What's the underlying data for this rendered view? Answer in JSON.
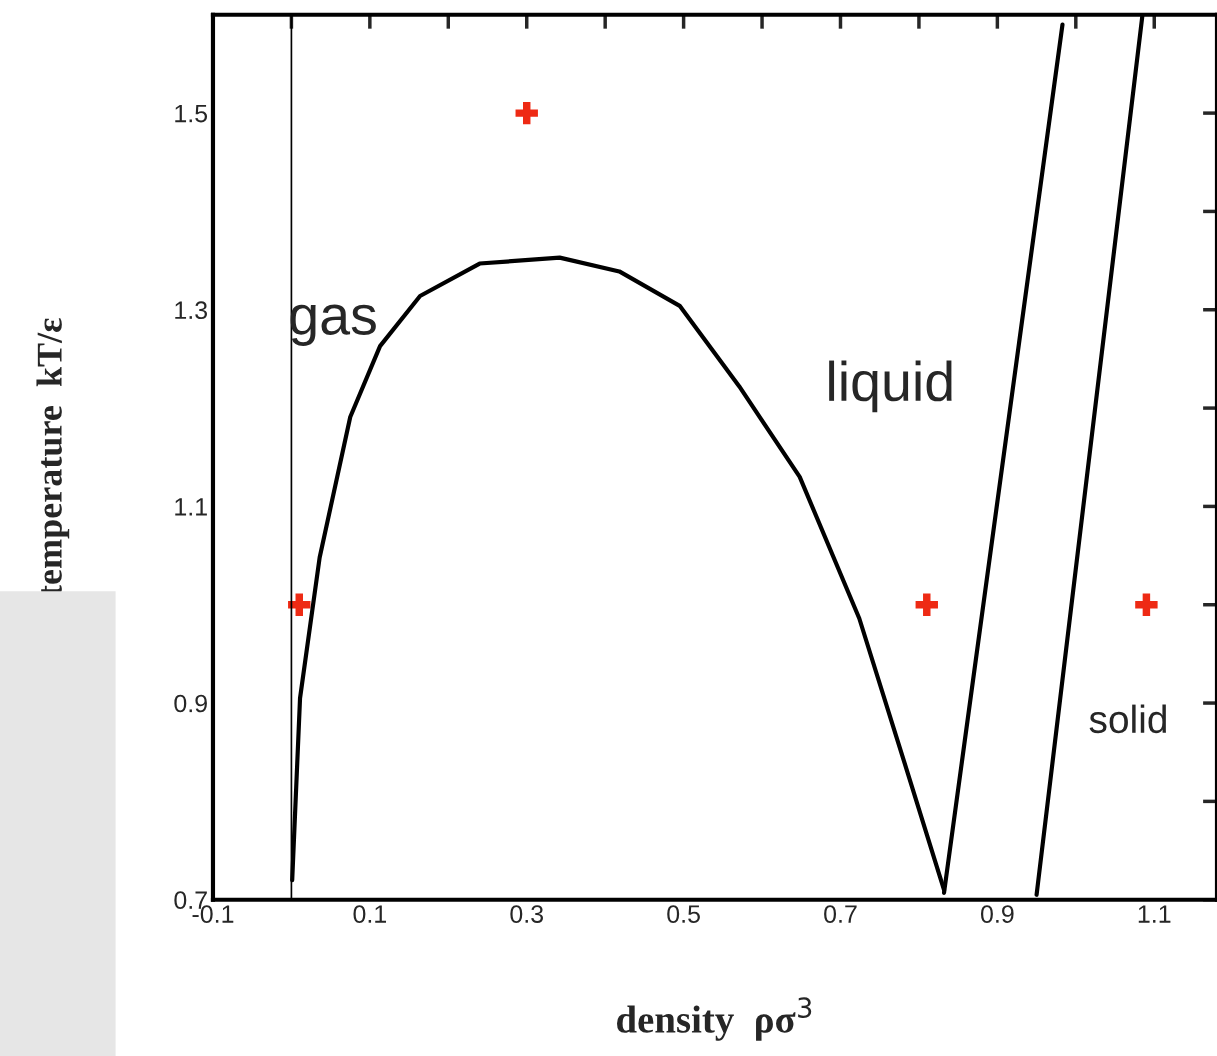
{
  "chart_data": {
    "type": "line",
    "xlabel": "density  ρσ$^{3}$",
    "ylabel": "temperature  kT/ε",
    "xlim": [
      -0.1,
      1.18
    ],
    "ylim": [
      0.7,
      1.6
    ],
    "xticks": [
      -0.1,
      {
        "value": 0,
        "label": null
      },
      0.1,
      {
        "value": 0.2,
        "label": null
      },
      0.3,
      {
        "value": 0.4,
        "label": null
      },
      0.5,
      {
        "value": 0.6,
        "label": null
      },
      0.7,
      {
        "value": 0.8,
        "label": null
      },
      0.9,
      {
        "value": 1.0,
        "label": null
      },
      1.1
    ],
    "yticks": [
      0.7,
      {
        "value": 0.8,
        "label": null
      },
      0.9,
      {
        "value": 1.0,
        "label": null
      },
      1.1,
      {
        "value": 1.2,
        "label": null
      },
      1.3,
      {
        "value": 1.4,
        "label": null
      },
      1.5
    ],
    "grid": false,
    "legend": false,
    "series": [
      {
        "color": "#000000",
        "line_style": "solid",
        "x": [
          0.001,
          0.011,
          0.036,
          0.075,
          0.113,
          0.164,
          0.24,
          0.342,
          0.418,
          0.495,
          0.571,
          0.648,
          0.724,
          0.788,
          0.832
        ],
        "values": [
          0.72,
          0.905,
          1.048,
          1.191,
          1.263,
          1.314,
          1.347,
          1.353,
          1.339,
          1.304,
          1.222,
          1.13,
          0.986,
          0.823,
          0.71
        ]
      },
      {
        "color": "#000000",
        "line_style": "solid",
        "x": [
          0.832,
          0.983
        ],
        "values": [
          0.707,
          1.59
        ]
      },
      {
        "color": "#000000",
        "line_style": "solid",
        "x": [
          0.95,
          1.085
        ],
        "values": [
          0.705,
          1.6
        ]
      },
      {
        "type": "scatter",
        "color": "#ee2a14",
        "marker": "cross",
        "x": [
          0.3,
          0.01,
          0.81,
          1.09
        ],
        "values": [
          1.5,
          1.0,
          1.0,
          1.0
        ]
      }
    ],
    "ref_lines": [
      {
        "axis": "x",
        "value": 0,
        "color": "#000000"
      }
    ],
    "annotations": [
      "gas",
      "liquid",
      "solid"
    ]
  }
}
